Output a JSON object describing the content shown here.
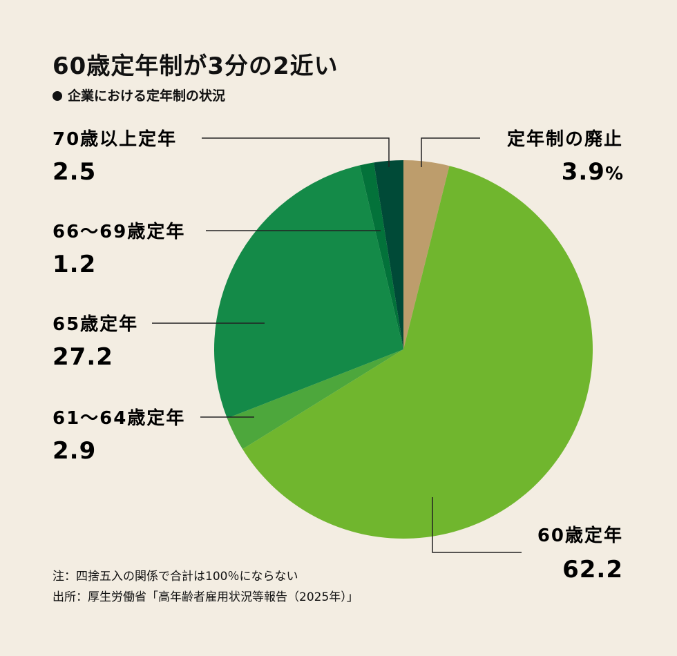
{
  "title": "60歳定年制が3分の2近い",
  "subtitle": "企業における定年制の状況",
  "chart_data": {
    "type": "pie",
    "start_angle_deg": 0,
    "slices": [
      {
        "label": "定年制の廃止",
        "value": 3.9,
        "value_label": "3.9",
        "unit": "%",
        "color": "#bd9d6c"
      },
      {
        "label": "60歳定年",
        "value": 62.2,
        "value_label": "62.2",
        "color": "#70b62e"
      },
      {
        "label": "61〜64歳定年",
        "value": 2.9,
        "value_label": "2.9",
        "color": "#4da73c"
      },
      {
        "label": "65歳定年",
        "value": 27.2,
        "value_label": "27.2",
        "color": "#148a48"
      },
      {
        "label": "66〜69歳定年",
        "value": 1.2,
        "value_label": "1.2",
        "color": "#03723a"
      },
      {
        "label": "70歳以上定年",
        "value": 2.5,
        "value_label": "2.5",
        "color": "#004a37"
      }
    ]
  },
  "notes": {
    "note": "注：四捨五入の関係で合計は100％にならない",
    "source": "出所：厚生労働省「高年齢者雇用状況等報告（2025年）」"
  }
}
